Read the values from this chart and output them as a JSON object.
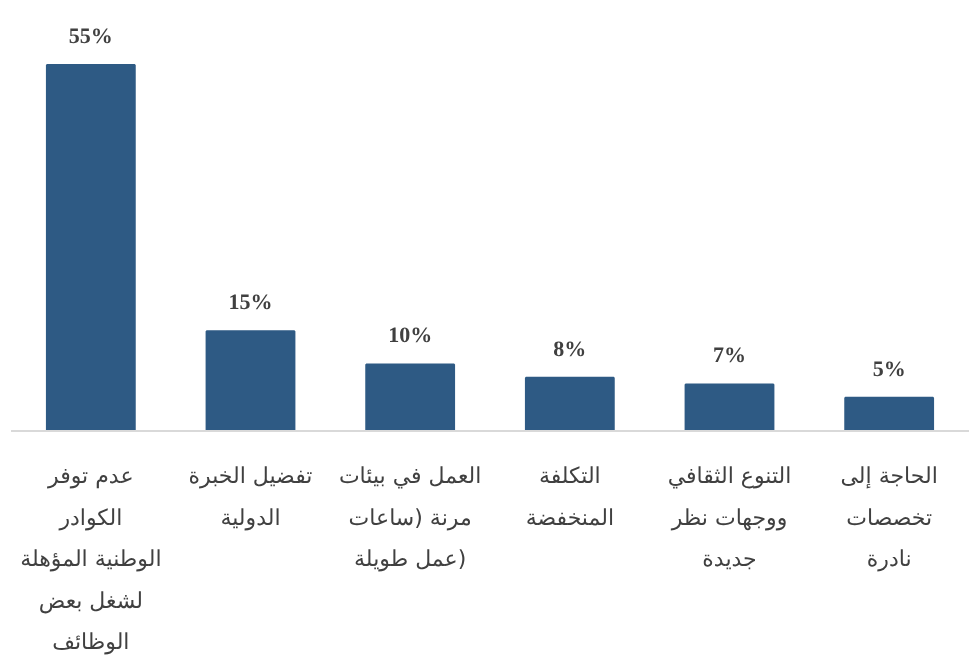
{
  "chart_data": {
    "type": "bar",
    "categories": [
      "عدم توفر\nالكوادر\nالوطنية المؤهلة\nلشغل بعض\nالوظائف",
      "تفضيل الخبرة\nالدولية",
      "العمل في بيئات\nمرنة (ساعات\nعمل طويلة)",
      "التكلفة\nالمنخفضة",
      "التنوع الثقافي\nووجهات نظر\nجديدة",
      "الحاجة إلى\nتخصصات\nنادرة"
    ],
    "values": [
      55,
      15,
      10,
      8,
      7,
      5
    ],
    "value_labels": [
      "55%",
      "15%",
      "10%",
      "8%",
      "7%",
      "5%"
    ],
    "color": "#2e5a84"
  }
}
